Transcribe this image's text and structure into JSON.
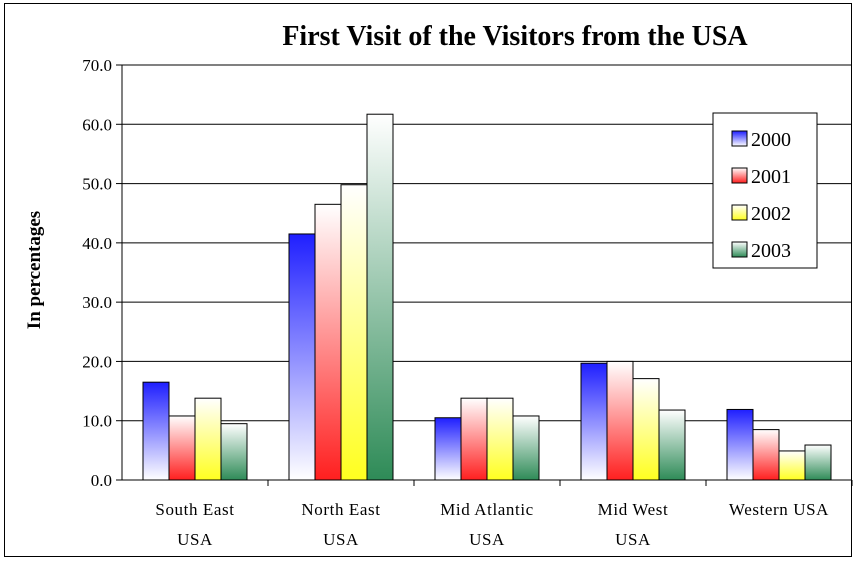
{
  "chart_data": {
    "type": "bar",
    "title": "First Visit of the Visitors from the USA",
    "xlabel": "",
    "ylabel": "In percentages",
    "ylim": [
      0,
      70
    ],
    "yticks": [
      "0.0",
      "10.0",
      "20.0",
      "30.0",
      "40.0",
      "50.0",
      "60.0",
      "70.0"
    ],
    "categories": [
      [
        "South East",
        "USA"
      ],
      [
        "North East",
        "USA"
      ],
      [
        "Mid Atlantic",
        "USA"
      ],
      [
        "Mid West",
        "USA"
      ],
      [
        "Western USA"
      ]
    ],
    "series": [
      {
        "name": "2000",
        "values": [
          16.5,
          41.5,
          10.5,
          19.7,
          11.9
        ],
        "color": "#1f1fff"
      },
      {
        "name": "2001",
        "values": [
          10.8,
          46.5,
          13.8,
          20.0,
          8.5
        ],
        "color": "#ff1f1f"
      },
      {
        "name": "2002",
        "values": [
          13.8,
          49.8,
          13.8,
          17.1,
          4.9
        ],
        "color": "#ffff1f"
      },
      {
        "name": "2003",
        "values": [
          9.5,
          61.7,
          10.8,
          11.8,
          5.9
        ],
        "color": "#2e8b57"
      }
    ],
    "grid": true,
    "legend_position": "top-right"
  }
}
